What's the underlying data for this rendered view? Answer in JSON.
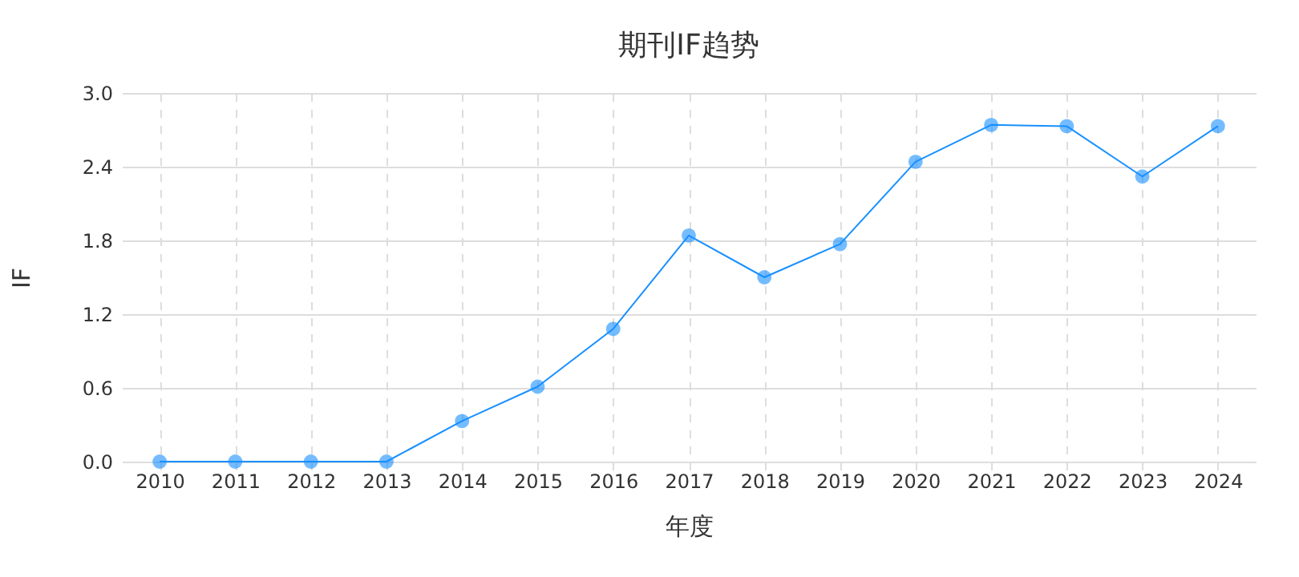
{
  "chart_data": {
    "type": "line",
    "title": "期刊IF趋势",
    "xlabel": "年度",
    "ylabel": "IF",
    "categories": [
      "2010",
      "2011",
      "2012",
      "2013",
      "2014",
      "2015",
      "2016",
      "2017",
      "2018",
      "2019",
      "2020",
      "2021",
      "2022",
      "2023",
      "2024"
    ],
    "series": [
      {
        "color": "#1890ff",
        "values": [
          0,
          0,
          0,
          0,
          0.33,
          0.61,
          1.08,
          1.84,
          1.5,
          1.77,
          2.44,
          2.74,
          2.73,
          2.32,
          2.73
        ]
      }
    ],
    "ylim": [
      0,
      3
    ],
    "yticks": [
      {
        "value": 0,
        "label": "0.0"
      },
      0.6,
      1.2,
      1.8,
      2.4,
      {
        "value": 3,
        "label": "3.0"
      }
    ],
    "grid": true,
    "marker": "circle",
    "line_style": "solid"
  }
}
